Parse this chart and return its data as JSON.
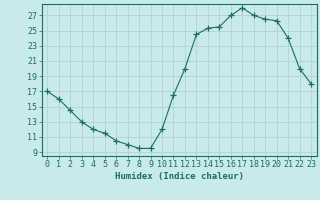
{
  "x": [
    0,
    1,
    2,
    3,
    4,
    5,
    6,
    7,
    8,
    9,
    10,
    11,
    12,
    13,
    14,
    15,
    16,
    17,
    18,
    19,
    20,
    21,
    22,
    23
  ],
  "y": [
    17,
    16,
    14.5,
    13,
    12,
    11.5,
    10.5,
    10,
    9.5,
    9.5,
    12,
    16.5,
    20,
    24.5,
    25.3,
    25.5,
    27,
    28,
    27,
    26.5,
    26.3,
    24,
    20,
    18
  ],
  "line_color": "#1a6e62",
  "marker": "+",
  "marker_size": 4,
  "bg_color": "#c8eaea",
  "grid_color": "#b0cccc",
  "axis_color": "#1a6e62",
  "xlabel": "Humidex (Indice chaleur)",
  "xlim": [
    -0.5,
    23.5
  ],
  "ylim": [
    8.5,
    28.5
  ],
  "yticks": [
    9,
    11,
    13,
    15,
    17,
    19,
    21,
    23,
    25,
    27
  ],
  "xticks": [
    0,
    1,
    2,
    3,
    4,
    5,
    6,
    7,
    8,
    9,
    10,
    11,
    12,
    13,
    14,
    15,
    16,
    17,
    18,
    19,
    20,
    21,
    22,
    23
  ],
  "label_fontsize": 6.5,
  "tick_fontsize": 6.0
}
